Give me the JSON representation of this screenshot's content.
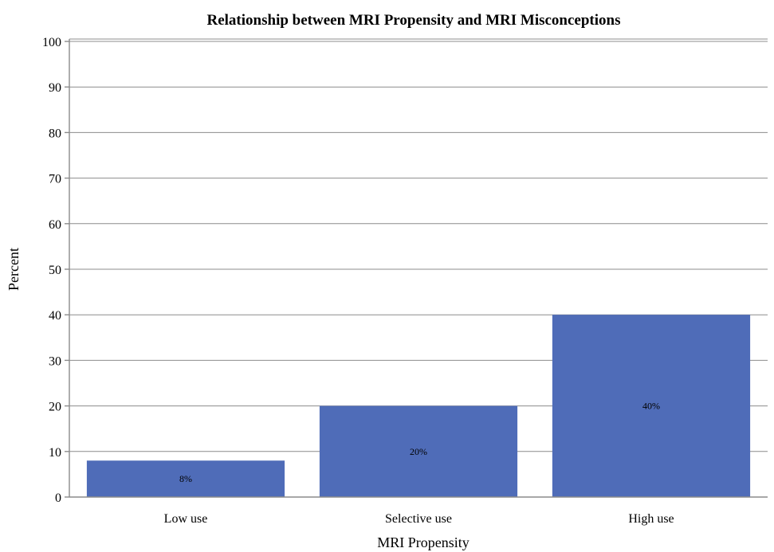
{
  "chart_data": {
    "type": "bar",
    "title": "Relationship between MRI Propensity and MRI Misconceptions",
    "xlabel": "MRI Propensity",
    "ylabel": "Percent",
    "categories": [
      "Low use",
      "Selective use",
      "High use"
    ],
    "values": [
      8,
      20,
      40
    ],
    "data_labels": [
      "8%",
      "20%",
      "40%"
    ],
    "ylim": [
      0,
      100
    ],
    "yticks": [
      0,
      10,
      20,
      30,
      40,
      50,
      60,
      70,
      80,
      90,
      100
    ],
    "grid": true,
    "bar_color": "#4f6cb8",
    "legend": "none"
  }
}
